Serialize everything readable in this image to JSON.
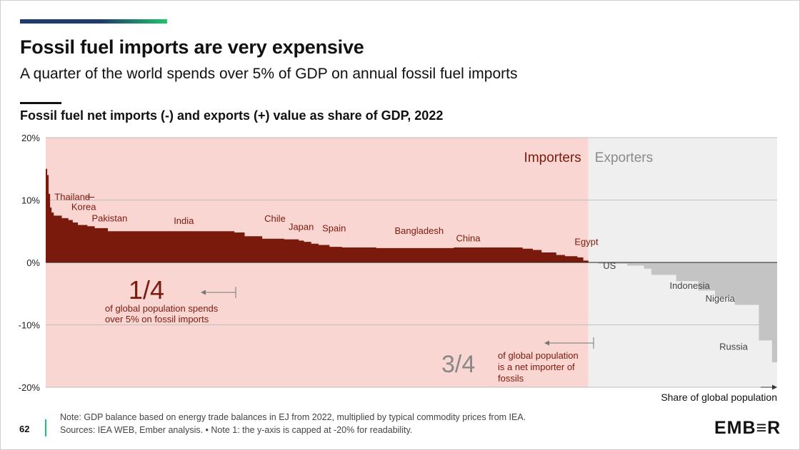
{
  "colors": {
    "accent_gradient_start": "#1f3a6e",
    "accent_gradient_end": "#1ec46a",
    "importer_bg": "#f9d6d2",
    "exporter_bg": "#efefef",
    "importer_bar": "#7a1a0c",
    "exporter_bar": "#c4c4c4",
    "gridline": "#bfbfbf",
    "footer_rule": "#1ec46a"
  },
  "header": {
    "title": "Fossil fuel imports are very expensive",
    "subtitle": "A quarter of the world spends over 5% of GDP on annual fossil fuel imports",
    "chart_title": "Fossil fuel net imports (-) and exports (+) value as share of GDP, 2022"
  },
  "footer": {
    "page_number": "62",
    "note_line1": "Note: GDP balance based on energy trade balances in EJ from 2022, multiplied by typical commodity prices from IEA.",
    "note_line2": "Sources: IEA WEB, Ember analysis. • Note 1: the y-axis is capped at -20% for readability.",
    "logo_text": "EMB≡R"
  },
  "chart_data": {
    "type": "area",
    "xlabel": "Share of global population",
    "ylim": [
      -20,
      20
    ],
    "yticks": [
      {
        "value": 20,
        "label": "20%"
      },
      {
        "value": 10,
        "label": "10%"
      },
      {
        "value": 0,
        "label": "0%"
      },
      {
        "value": -10,
        "label": "-10%"
      },
      {
        "value": -20,
        "label": "-20%"
      }
    ],
    "regions": [
      {
        "name": "Importers",
        "x_start": 0,
        "x_end": 0.742
      },
      {
        "name": "Exporters",
        "x_start": 0.742,
        "x_end": 1
      }
    ],
    "series": [
      {
        "name": "Importers",
        "steps": [
          {
            "x": 0.0,
            "y": 15.0
          },
          {
            "x": 0.002,
            "y": 14.0
          },
          {
            "x": 0.004,
            "y": 11.0
          },
          {
            "x": 0.006,
            "y": 8.8
          },
          {
            "x": 0.008,
            "y": 8.0
          },
          {
            "x": 0.011,
            "y": 7.5
          },
          {
            "x": 0.022,
            "y": 7.1
          },
          {
            "x": 0.031,
            "y": 6.8
          },
          {
            "x": 0.037,
            "y": 6.4
          },
          {
            "x": 0.044,
            "y": 6.0
          },
          {
            "x": 0.057,
            "y": 5.8
          },
          {
            "x": 0.067,
            "y": 5.5
          },
          {
            "x": 0.085,
            "y": 5.0
          },
          {
            "x": 0.258,
            "y": 4.8
          },
          {
            "x": 0.272,
            "y": 4.2
          },
          {
            "x": 0.296,
            "y": 3.8
          },
          {
            "x": 0.326,
            "y": 3.7
          },
          {
            "x": 0.346,
            "y": 3.5
          },
          {
            "x": 0.353,
            "y": 3.3
          },
          {
            "x": 0.363,
            "y": 3.0
          },
          {
            "x": 0.373,
            "y": 2.8
          },
          {
            "x": 0.388,
            "y": 2.5
          },
          {
            "x": 0.405,
            "y": 2.4
          },
          {
            "x": 0.452,
            "y": 2.3
          },
          {
            "x": 0.558,
            "y": 2.4
          },
          {
            "x": 0.652,
            "y": 2.2
          },
          {
            "x": 0.666,
            "y": 2.0
          },
          {
            "x": 0.678,
            "y": 1.6
          },
          {
            "x": 0.698,
            "y": 1.2
          },
          {
            "x": 0.71,
            "y": 1.0
          },
          {
            "x": 0.727,
            "y": 0.8
          },
          {
            "x": 0.735,
            "y": 0.3
          },
          {
            "x": 0.742,
            "y": 0.0
          }
        ]
      },
      {
        "name": "Exporters",
        "steps": [
          {
            "x": 0.742,
            "y": 0.0
          },
          {
            "x": 0.755,
            "y": -0.2
          },
          {
            "x": 0.795,
            "y": -0.5
          },
          {
            "x": 0.818,
            "y": -1.0
          },
          {
            "x": 0.828,
            "y": -2.0
          },
          {
            "x": 0.862,
            "y": -3.0
          },
          {
            "x": 0.892,
            "y": -4.5
          },
          {
            "x": 0.915,
            "y": -5.5
          },
          {
            "x": 0.942,
            "y": -6.8
          },
          {
            "x": 0.975,
            "y": -12.5
          },
          {
            "x": 0.993,
            "y": -16.0
          },
          {
            "x": 1.0,
            "y": -20.0
          }
        ]
      }
    ],
    "region_labels": {
      "importers": "Importers",
      "exporters": "Exporters"
    },
    "country_labels": [
      {
        "name": "Thailand",
        "x": 0.012,
        "y": 10.0
      },
      {
        "name": "Korea",
        "x": 0.035,
        "y": 8.4
      },
      {
        "name": "Pakistan",
        "x": 0.063,
        "y": 6.6
      },
      {
        "name": "India",
        "x": 0.175,
        "y": 6.2
      },
      {
        "name": "Chile",
        "x": 0.299,
        "y": 6.5
      },
      {
        "name": "Japan",
        "x": 0.332,
        "y": 5.2
      },
      {
        "name": "Spain",
        "x": 0.378,
        "y": 5.0
      },
      {
        "name": "Bangladesh",
        "x": 0.477,
        "y": 4.6
      },
      {
        "name": "China",
        "x": 0.561,
        "y": 3.4
      },
      {
        "name": "Egypt",
        "x": 0.723,
        "y": 2.8
      },
      {
        "name": "US",
        "x": 0.762,
        "y": -1.0
      },
      {
        "name": "Indonesia",
        "x": 0.853,
        "y": -4.2
      },
      {
        "name": "Nigeria",
        "x": 0.902,
        "y": -6.3
      },
      {
        "name": "Russia",
        "x": 0.921,
        "y": -14.0
      }
    ],
    "annotations": {
      "quarter_fraction": "1/4",
      "quarter_text_line1": "of global population spends",
      "quarter_text_line2": "over 5% on fossil imports",
      "three_quarter_fraction": "3/4",
      "three_quarter_text_line1": "of global population",
      "three_quarter_text_line2": "is a net importer of",
      "three_quarter_text_line3": "fossils"
    }
  }
}
